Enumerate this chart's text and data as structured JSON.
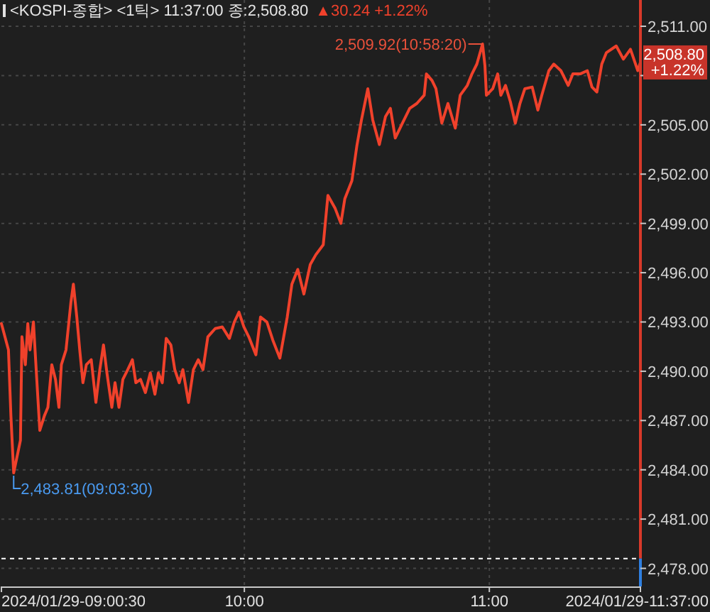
{
  "chart_data": {
    "type": "line",
    "title": "<KOSPI-종합> <1틱> 11:37:00 종:2,508.80",
    "subtitle": "▲30.24 +1.22%",
    "x": [
      9.0083,
      9.037,
      9.047,
      9.0583,
      9.086,
      9.092,
      9.106,
      9.116,
      9.125,
      9.139,
      9.151,
      9.165,
      9.184,
      9.198,
      9.214,
      9.229,
      9.243,
      9.253,
      9.272,
      9.292,
      9.302,
      9.316,
      9.328,
      9.341,
      9.355,
      9.375,
      9.394,
      9.41,
      9.425,
      9.439,
      9.459,
      9.472,
      9.488,
      9.504,
      9.524,
      9.543,
      9.557,
      9.576,
      9.596,
      9.616,
      9.635,
      9.649,
      9.665,
      9.681,
      9.7,
      9.716,
      9.734,
      9.749,
      9.772,
      9.792,
      9.812,
      9.831,
      9.851,
      9.881,
      9.91,
      9.939,
      9.959,
      9.978,
      9.998,
      10.018,
      10.047,
      10.066,
      10.092,
      10.116,
      10.145,
      10.175,
      10.194,
      10.218,
      10.243,
      10.269,
      10.292,
      10.322,
      10.341,
      10.371,
      10.394,
      10.41,
      10.439,
      10.459,
      10.478,
      10.504,
      10.524,
      10.551,
      10.576,
      10.596,
      10.616,
      10.645,
      10.675,
      10.704,
      10.734,
      10.743,
      10.766,
      10.782,
      10.806,
      10.831,
      10.861,
      10.881,
      10.91,
      10.929,
      10.949,
      10.9722,
      10.982,
      10.988,
      11.014,
      11.034,
      11.047,
      11.066,
      11.086,
      11.106,
      11.125,
      11.145,
      11.175,
      11.198,
      11.214,
      11.243,
      11.263,
      11.292,
      11.322,
      11.341,
      11.371,
      11.4,
      11.419,
      11.439,
      11.459,
      11.478,
      11.518,
      11.547,
      11.576,
      11.606,
      11.6167
    ],
    "series": [
      {
        "color": "#f0412b",
        "values": [
          2492.9,
          2491.3,
          2487.3,
          2483.81,
          2485.8,
          2492.1,
          2490.4,
          2492.9,
          2491.3,
          2493.0,
          2489.9,
          2486.4,
          2487.3,
          2487.8,
          2490.4,
          2489.5,
          2487.8,
          2490.4,
          2491.3,
          2494.2,
          2495.3,
          2493.3,
          2491.3,
          2489.3,
          2490.4,
          2490.7,
          2488.1,
          2490.1,
          2491.6,
          2489.9,
          2487.8,
          2489.3,
          2487.8,
          2489.5,
          2490.1,
          2490.7,
          2489.3,
          2489.5,
          2488.7,
          2489.9,
          2488.6,
          2489.9,
          2489.3,
          2492.0,
          2491.6,
          2490.1,
          2489.3,
          2490.1,
          2488.1,
          2490.1,
          2490.7,
          2490.1,
          2492.1,
          2492.6,
          2492.7,
          2492.0,
          2493.0,
          2493.6,
          2492.7,
          2492.1,
          2491.0,
          2493.3,
          2493.0,
          2491.9,
          2490.8,
          2493.3,
          2495.3,
          2496.2,
          2494.7,
          2496.5,
          2497.1,
          2497.7,
          2500.7,
          2499.9,
          2499.0,
          2500.5,
          2501.6,
          2503.7,
          2505.3,
          2507.2,
          2505.3,
          2503.8,
          2505.5,
          2506.0,
          2504.2,
          2505.1,
          2506.0,
          2506.3,
          2506.8,
          2508.1,
          2507.7,
          2507.2,
          2505.1,
          2506.3,
          2504.8,
          2506.8,
          2507.4,
          2508.1,
          2508.7,
          2509.92,
          2508.6,
          2506.8,
          2507.2,
          2508.1,
          2506.8,
          2507.4,
          2506.4,
          2505.1,
          2506.3,
          2507.2,
          2507.3,
          2505.9,
          2506.8,
          2508.3,
          2508.7,
          2508.3,
          2507.4,
          2508.1,
          2508.1,
          2508.3,
          2507.3,
          2507.0,
          2508.7,
          2509.4,
          2509.8,
          2509.0,
          2509.6,
          2508.3,
          2508.8
        ]
      }
    ],
    "xlim": [
      9.0083,
      11.6167
    ],
    "xticks": [
      {
        "value": 9.0083,
        "label": "2024/01/29-09:00:30"
      },
      {
        "value": 10,
        "label": "10:00"
      },
      {
        "value": 11,
        "label": "11:00"
      },
      {
        "value": 11.6167,
        "label": "2024/01/29-11:37:00"
      }
    ],
    "ylim": [
      2476.9,
      2512.6
    ],
    "yticks": [
      {
        "value": 2478,
        "label": "2,478.00"
      },
      {
        "value": 2481,
        "label": "2,481.00"
      },
      {
        "value": 2484,
        "label": "2,484.00"
      },
      {
        "value": 2487,
        "label": "2,487.00"
      },
      {
        "value": 2490,
        "label": "2,490.00"
      },
      {
        "value": 2493,
        "label": "2,493.00"
      },
      {
        "value": 2496,
        "label": "2,496.00"
      },
      {
        "value": 2499,
        "label": "2,499.00"
      },
      {
        "value": 2502,
        "label": "2,502.00"
      },
      {
        "value": 2505,
        "label": "2,505.00"
      },
      {
        "value": 2508,
        "label": null
      },
      {
        "value": 2511,
        "label": "2,511.00"
      }
    ],
    "grid": true,
    "ref_lines": [
      {
        "axis": "y",
        "value": 2478.6,
        "color": "#ffffff",
        "line_style": "dashed"
      }
    ],
    "annotations": [
      {
        "text": "2,509.92(10:58:20)",
        "x": 10.9722,
        "y": 2509.92
      },
      {
        "text": "2,483.81(09:03:30)",
        "x": 9.0583,
        "y": 2483.81
      },
      {
        "text": "2,508.80\n+1.22%",
        "x": 11.6167,
        "y": 2508.8
      }
    ]
  }
}
